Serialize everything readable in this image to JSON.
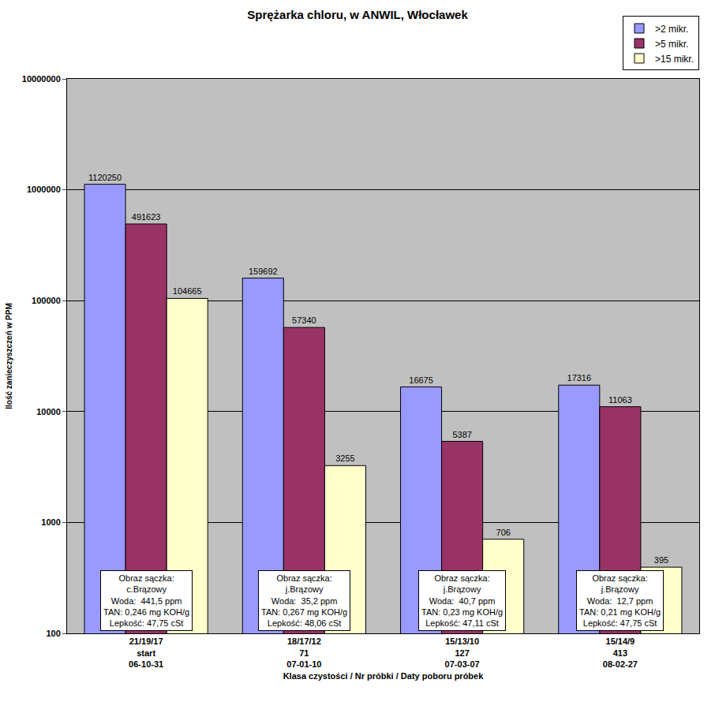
{
  "chart_data": {
    "type": "bar",
    "title": "Sprężarka chloru, w ANWIL, Włocławek",
    "y_label": "Ilość zanieczyszczeń w PPM",
    "x_label": "Klasa czystości / Nr próbki / Daty poboru próbek",
    "categories": [
      "21/19/17",
      "18/17/12",
      "15/13/10",
      "15/14/9"
    ],
    "sample_numbers": [
      "start",
      "71",
      "127",
      "413"
    ],
    "sample_dates": [
      "06-10-31",
      "07-01-10",
      "07-03-07",
      "08-02-27"
    ],
    "series": [
      {
        "name": ">2 mikr.",
        "color": "#9999ff",
        "values": [
          1120250,
          159692,
          16675,
          17316
        ]
      },
      {
        "name": ">5 mikr.",
        "color": "#993366",
        "values": [
          491623,
          57340,
          5387,
          11063
        ]
      },
      {
        "name": ">15 mikr.",
        "color": "#ffffcc",
        "values": [
          104665,
          3255,
          706,
          395
        ]
      }
    ],
    "filter_notes": [
      [
        "Obraz sączka:",
        "c.Brązowy",
        "Woda:  441,5 ppm",
        "TAN: 0,246 mg KOH/g",
        "Lepkość: 47,75 cSt"
      ],
      [
        "Obraz sączka:",
        "j.Brązowy",
        "Woda:  35,2 ppm",
        "TAN: 0,267 mg KOH/g",
        "Lepkość: 48,06 cSt"
      ],
      [
        "Obraz sączka:",
        "j.Brązowy",
        "Woda:  40,7 ppm",
        "TAN: 0,23 mg KOH/g",
        "Lepkość: 47,11 cSt"
      ],
      [
        "Obraz sączka:",
        "j.Brązowy",
        "Woda:  12,7 ppm",
        "TAN: 0,21 mg KOH/g",
        "Lepkość: 47,75 cSt"
      ]
    ],
    "ylim": [
      100,
      10000000
    ],
    "yticks": [
      100,
      1000,
      10000,
      100000,
      1000000,
      10000000
    ],
    "log": "y",
    "grid": true,
    "legend": "top-right",
    "data_labels": true
  }
}
